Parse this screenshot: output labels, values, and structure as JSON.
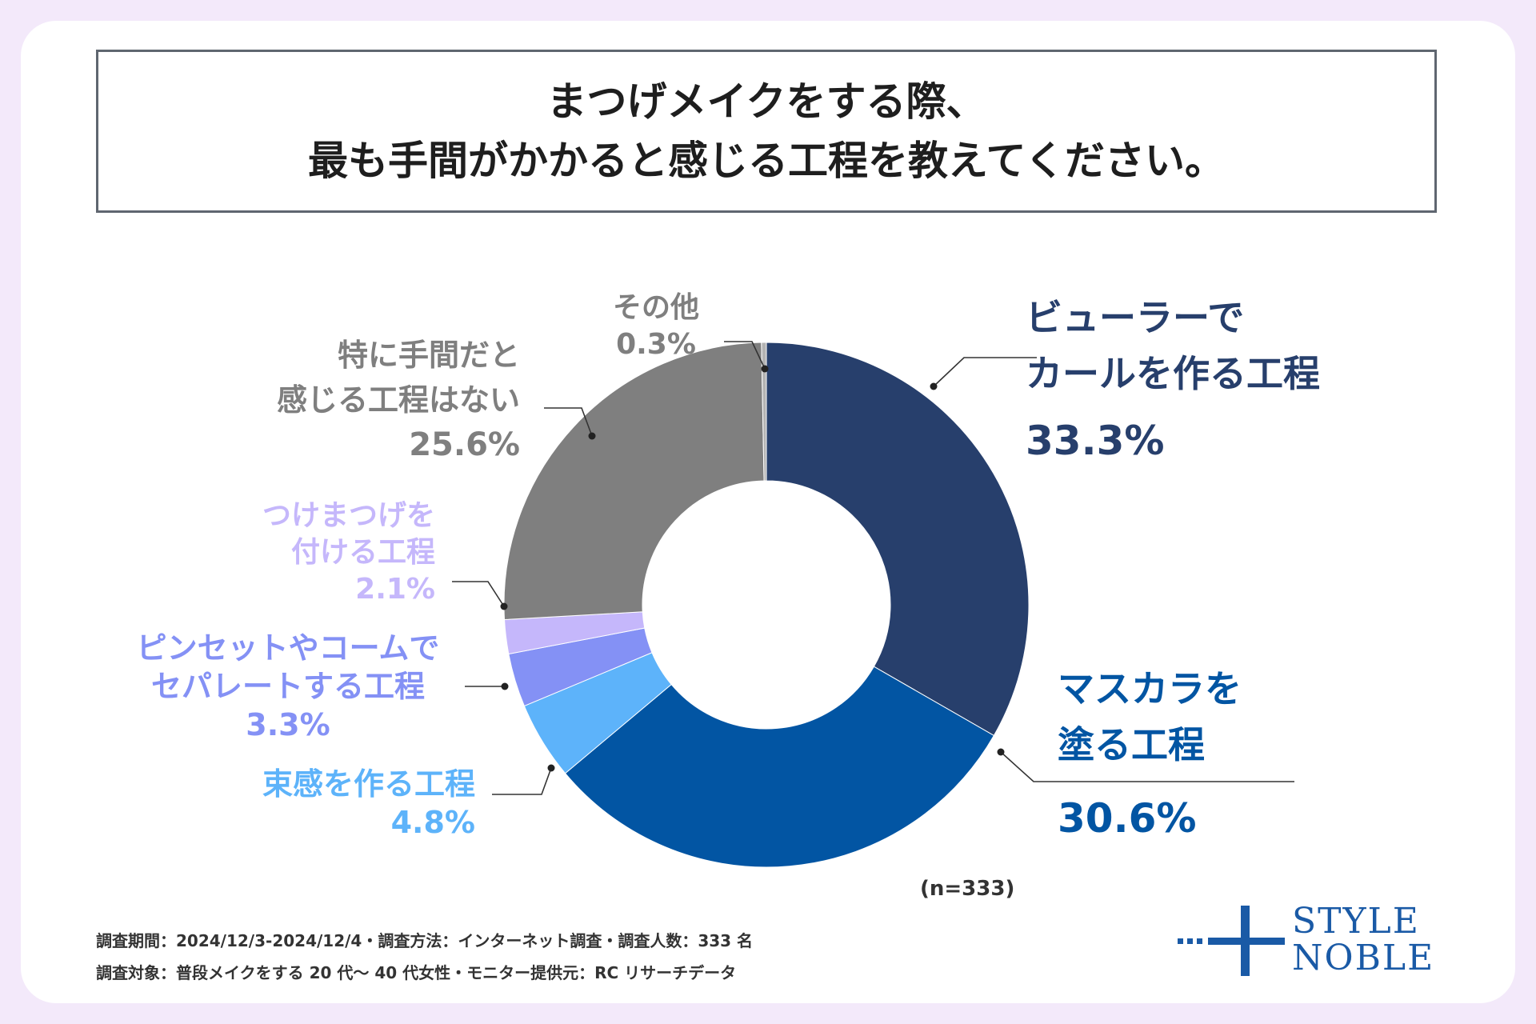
{
  "title": {
    "line1": "まつげメイクをする際、",
    "line2": "最も手間がかかると感じる工程を教えてください。"
  },
  "chart_data": {
    "type": "pie",
    "title": "まつげメイクをする際、最も手間がかかると感じる工程を教えてください。",
    "categories": [
      "ビューラーでカールを作る工程",
      "マスカラを塗る工程",
      "束感を作る工程",
      "ピンセットやコームでセパレートする工程",
      "つけまつげを付ける工程",
      "特に手間だと感じる工程はない",
      "その他"
    ],
    "values": [
      33.3,
      30.6,
      4.8,
      3.3,
      2.1,
      25.6,
      0.3
    ],
    "colors": [
      "#273f6c",
      "#0255a3",
      "#5db3fa",
      "#8491f5",
      "#c5b7fb",
      "#7f7f7f",
      "#b3b3b3"
    ],
    "n": "(n=333)"
  },
  "labels": {
    "curler": {
      "line1": "ビューラーで",
      "line2": "カールを作る工程",
      "pct": "33.3%"
    },
    "mascara": {
      "line1": "マスカラを",
      "line2": "塗る工程",
      "pct": "30.6%"
    },
    "bundle": {
      "line1": "束感を作る工程",
      "pct": "4.8%"
    },
    "separate": {
      "line1": "ピンセットやコームで",
      "line2": "セパレートする工程",
      "pct": "3.3%"
    },
    "false_lash": {
      "line1": "つけまつげを",
      "line2": "付ける工程",
      "pct": "2.1%"
    },
    "none": {
      "line1": "特に手間だと",
      "line2": "感じる工程はない",
      "pct": "25.6%"
    },
    "other": {
      "line1": "その他",
      "pct": "0.3%"
    }
  },
  "footer": {
    "line1": "調査期間：2024/12/3-2024/12/4・調査方法：インターネット調査・調査人数：333 名",
    "line2": "調査対象：普段メイクをする 20 代〜 40 代女性・モニター提供元：RC リサーチデータ"
  },
  "logo": {
    "line1": "STYLE",
    "line2": "NOBLE",
    "color": "#1a5aa6"
  }
}
